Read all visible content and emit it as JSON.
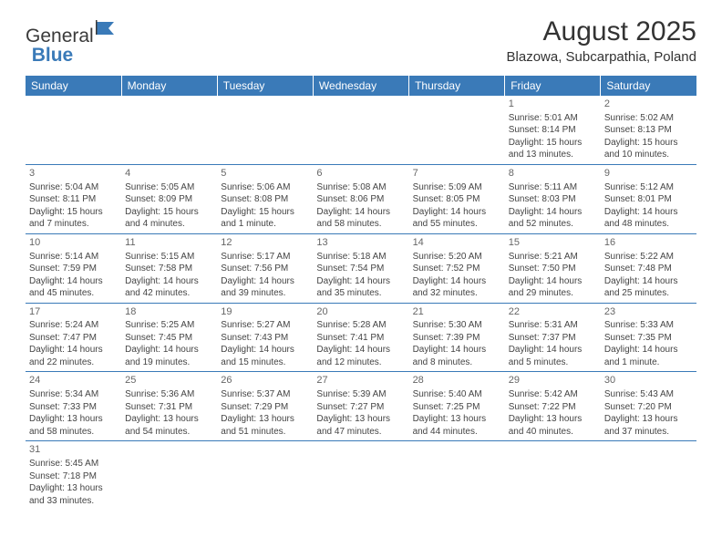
{
  "logo": {
    "word1": "General",
    "word2": "Blue"
  },
  "title": "August 2025",
  "location": "Blazowa, Subcarpathia, Poland",
  "colors": {
    "header_bg": "#3a7ab8",
    "header_text": "#ffffff",
    "rule": "#3a7ab8",
    "cell_text": "#444444",
    "daynum_text": "#666666",
    "logo_gray": "#3a3a3a",
    "logo_blue": "#3a7ab8",
    "background": "#ffffff"
  },
  "typography": {
    "title_fontsize": 30,
    "location_fontsize": 15,
    "header_fontsize": 12,
    "cell_fontsize": 10,
    "daynum_fontsize": 11
  },
  "day_headers": [
    "Sunday",
    "Monday",
    "Tuesday",
    "Wednesday",
    "Thursday",
    "Friday",
    "Saturday"
  ],
  "weeks": [
    [
      null,
      null,
      null,
      null,
      null,
      {
        "n": "1",
        "sunrise": "Sunrise: 5:01 AM",
        "sunset": "Sunset: 8:14 PM",
        "day1": "Daylight: 15 hours",
        "day2": "and 13 minutes."
      },
      {
        "n": "2",
        "sunrise": "Sunrise: 5:02 AM",
        "sunset": "Sunset: 8:13 PM",
        "day1": "Daylight: 15 hours",
        "day2": "and 10 minutes."
      }
    ],
    [
      {
        "n": "3",
        "sunrise": "Sunrise: 5:04 AM",
        "sunset": "Sunset: 8:11 PM",
        "day1": "Daylight: 15 hours",
        "day2": "and 7 minutes."
      },
      {
        "n": "4",
        "sunrise": "Sunrise: 5:05 AM",
        "sunset": "Sunset: 8:09 PM",
        "day1": "Daylight: 15 hours",
        "day2": "and 4 minutes."
      },
      {
        "n": "5",
        "sunrise": "Sunrise: 5:06 AM",
        "sunset": "Sunset: 8:08 PM",
        "day1": "Daylight: 15 hours",
        "day2": "and 1 minute."
      },
      {
        "n": "6",
        "sunrise": "Sunrise: 5:08 AM",
        "sunset": "Sunset: 8:06 PM",
        "day1": "Daylight: 14 hours",
        "day2": "and 58 minutes."
      },
      {
        "n": "7",
        "sunrise": "Sunrise: 5:09 AM",
        "sunset": "Sunset: 8:05 PM",
        "day1": "Daylight: 14 hours",
        "day2": "and 55 minutes."
      },
      {
        "n": "8",
        "sunrise": "Sunrise: 5:11 AM",
        "sunset": "Sunset: 8:03 PM",
        "day1": "Daylight: 14 hours",
        "day2": "and 52 minutes."
      },
      {
        "n": "9",
        "sunrise": "Sunrise: 5:12 AM",
        "sunset": "Sunset: 8:01 PM",
        "day1": "Daylight: 14 hours",
        "day2": "and 48 minutes."
      }
    ],
    [
      {
        "n": "10",
        "sunrise": "Sunrise: 5:14 AM",
        "sunset": "Sunset: 7:59 PM",
        "day1": "Daylight: 14 hours",
        "day2": "and 45 minutes."
      },
      {
        "n": "11",
        "sunrise": "Sunrise: 5:15 AM",
        "sunset": "Sunset: 7:58 PM",
        "day1": "Daylight: 14 hours",
        "day2": "and 42 minutes."
      },
      {
        "n": "12",
        "sunrise": "Sunrise: 5:17 AM",
        "sunset": "Sunset: 7:56 PM",
        "day1": "Daylight: 14 hours",
        "day2": "and 39 minutes."
      },
      {
        "n": "13",
        "sunrise": "Sunrise: 5:18 AM",
        "sunset": "Sunset: 7:54 PM",
        "day1": "Daylight: 14 hours",
        "day2": "and 35 minutes."
      },
      {
        "n": "14",
        "sunrise": "Sunrise: 5:20 AM",
        "sunset": "Sunset: 7:52 PM",
        "day1": "Daylight: 14 hours",
        "day2": "and 32 minutes."
      },
      {
        "n": "15",
        "sunrise": "Sunrise: 5:21 AM",
        "sunset": "Sunset: 7:50 PM",
        "day1": "Daylight: 14 hours",
        "day2": "and 29 minutes."
      },
      {
        "n": "16",
        "sunrise": "Sunrise: 5:22 AM",
        "sunset": "Sunset: 7:48 PM",
        "day1": "Daylight: 14 hours",
        "day2": "and 25 minutes."
      }
    ],
    [
      {
        "n": "17",
        "sunrise": "Sunrise: 5:24 AM",
        "sunset": "Sunset: 7:47 PM",
        "day1": "Daylight: 14 hours",
        "day2": "and 22 minutes."
      },
      {
        "n": "18",
        "sunrise": "Sunrise: 5:25 AM",
        "sunset": "Sunset: 7:45 PM",
        "day1": "Daylight: 14 hours",
        "day2": "and 19 minutes."
      },
      {
        "n": "19",
        "sunrise": "Sunrise: 5:27 AM",
        "sunset": "Sunset: 7:43 PM",
        "day1": "Daylight: 14 hours",
        "day2": "and 15 minutes."
      },
      {
        "n": "20",
        "sunrise": "Sunrise: 5:28 AM",
        "sunset": "Sunset: 7:41 PM",
        "day1": "Daylight: 14 hours",
        "day2": "and 12 minutes."
      },
      {
        "n": "21",
        "sunrise": "Sunrise: 5:30 AM",
        "sunset": "Sunset: 7:39 PM",
        "day1": "Daylight: 14 hours",
        "day2": "and 8 minutes."
      },
      {
        "n": "22",
        "sunrise": "Sunrise: 5:31 AM",
        "sunset": "Sunset: 7:37 PM",
        "day1": "Daylight: 14 hours",
        "day2": "and 5 minutes."
      },
      {
        "n": "23",
        "sunrise": "Sunrise: 5:33 AM",
        "sunset": "Sunset: 7:35 PM",
        "day1": "Daylight: 14 hours",
        "day2": "and 1 minute."
      }
    ],
    [
      {
        "n": "24",
        "sunrise": "Sunrise: 5:34 AM",
        "sunset": "Sunset: 7:33 PM",
        "day1": "Daylight: 13 hours",
        "day2": "and 58 minutes."
      },
      {
        "n": "25",
        "sunrise": "Sunrise: 5:36 AM",
        "sunset": "Sunset: 7:31 PM",
        "day1": "Daylight: 13 hours",
        "day2": "and 54 minutes."
      },
      {
        "n": "26",
        "sunrise": "Sunrise: 5:37 AM",
        "sunset": "Sunset: 7:29 PM",
        "day1": "Daylight: 13 hours",
        "day2": "and 51 minutes."
      },
      {
        "n": "27",
        "sunrise": "Sunrise: 5:39 AM",
        "sunset": "Sunset: 7:27 PM",
        "day1": "Daylight: 13 hours",
        "day2": "and 47 minutes."
      },
      {
        "n": "28",
        "sunrise": "Sunrise: 5:40 AM",
        "sunset": "Sunset: 7:25 PM",
        "day1": "Daylight: 13 hours",
        "day2": "and 44 minutes."
      },
      {
        "n": "29",
        "sunrise": "Sunrise: 5:42 AM",
        "sunset": "Sunset: 7:22 PM",
        "day1": "Daylight: 13 hours",
        "day2": "and 40 minutes."
      },
      {
        "n": "30",
        "sunrise": "Sunrise: 5:43 AM",
        "sunset": "Sunset: 7:20 PM",
        "day1": "Daylight: 13 hours",
        "day2": "and 37 minutes."
      }
    ],
    [
      {
        "n": "31",
        "sunrise": "Sunrise: 5:45 AM",
        "sunset": "Sunset: 7:18 PM",
        "day1": "Daylight: 13 hours",
        "day2": "and 33 minutes."
      },
      null,
      null,
      null,
      null,
      null,
      null
    ]
  ]
}
